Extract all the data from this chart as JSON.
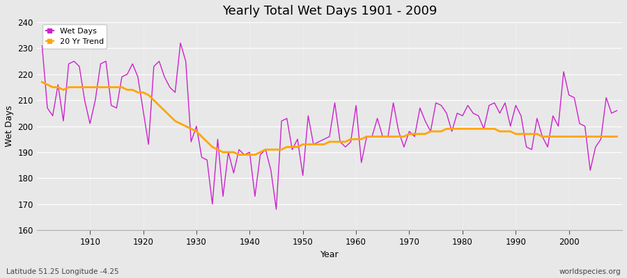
{
  "title": "Yearly Total Wet Days 1901 - 2009",
  "xlabel": "Year",
  "ylabel": "Wet Days",
  "lat_lon_label": "Latitude 51.25 Longitude -4.25",
  "watermark": "worldspecies.org",
  "wet_days_color": "#cc22cc",
  "trend_color": "#ffa500",
  "background_color": "#e8e8e8",
  "grid_color": "#ffffff",
  "ylim": [
    160,
    240
  ],
  "xlim": [
    1900,
    2010
  ],
  "yticks": [
    160,
    170,
    180,
    190,
    200,
    210,
    220,
    230,
    240
  ],
  "xticks": [
    1910,
    1920,
    1930,
    1940,
    1950,
    1960,
    1970,
    1980,
    1990,
    2000
  ],
  "years": [
    1901,
    1902,
    1903,
    1904,
    1905,
    1906,
    1907,
    1908,
    1909,
    1910,
    1911,
    1912,
    1913,
    1914,
    1915,
    1916,
    1917,
    1918,
    1919,
    1920,
    1921,
    1922,
    1923,
    1924,
    1925,
    1926,
    1927,
    1928,
    1929,
    1930,
    1931,
    1932,
    1933,
    1934,
    1935,
    1936,
    1937,
    1938,
    1939,
    1940,
    1941,
    1942,
    1943,
    1944,
    1945,
    1946,
    1947,
    1948,
    1949,
    1950,
    1951,
    1952,
    1953,
    1954,
    1955,
    1956,
    1957,
    1958,
    1959,
    1960,
    1961,
    1962,
    1963,
    1964,
    1965,
    1966,
    1967,
    1968,
    1969,
    1970,
    1971,
    1972,
    1973,
    1974,
    1975,
    1976,
    1977,
    1978,
    1979,
    1980,
    1981,
    1982,
    1983,
    1984,
    1985,
    1986,
    1987,
    1988,
    1989,
    1990,
    1991,
    1992,
    1993,
    1994,
    1995,
    1996,
    1997,
    1998,
    1999,
    2000,
    2001,
    2002,
    2003,
    2004,
    2005,
    2006,
    2007,
    2008,
    2009
  ],
  "wet_days": [
    231,
    207,
    204,
    216,
    202,
    224,
    225,
    223,
    210,
    201,
    210,
    224,
    225,
    208,
    207,
    219,
    220,
    224,
    219,
    206,
    193,
    223,
    225,
    219,
    215,
    213,
    232,
    225,
    194,
    200,
    188,
    187,
    170,
    195,
    173,
    190,
    182,
    191,
    189,
    190,
    173,
    189,
    191,
    183,
    168,
    202,
    203,
    191,
    195,
    181,
    204,
    193,
    194,
    195,
    196,
    209,
    194,
    192,
    194,
    208,
    186,
    196,
    196,
    203,
    196,
    196,
    209,
    198,
    192,
    198,
    196,
    207,
    202,
    198,
    209,
    208,
    205,
    198,
    205,
    204,
    208,
    205,
    204,
    199,
    208,
    209,
    205,
    209,
    200,
    208,
    204,
    192,
    191,
    203,
    196,
    192,
    204,
    200,
    221,
    212,
    211,
    201,
    200,
    183,
    192,
    195,
    211,
    205,
    206
  ],
  "trend": [
    217,
    216,
    215,
    215,
    214,
    215,
    215,
    215,
    215,
    215,
    215,
    215,
    215,
    215,
    215,
    215,
    214,
    214,
    213,
    213,
    212,
    210,
    208,
    206,
    204,
    202,
    201,
    200,
    199,
    198,
    196,
    194,
    192,
    191,
    190,
    190,
    190,
    189,
    189,
    189,
    189,
    190,
    191,
    191,
    191,
    191,
    192,
    192,
    192,
    193,
    193,
    193,
    193,
    193,
    194,
    194,
    194,
    194,
    195,
    195,
    195,
    196,
    196,
    196,
    196,
    196,
    196,
    196,
    196,
    197,
    197,
    197,
    197,
    198,
    198,
    198,
    199,
    199,
    199,
    199,
    199,
    199,
    199,
    199,
    199,
    199,
    198,
    198,
    198,
    197,
    197,
    197,
    197,
    197,
    196,
    196,
    196,
    196,
    196,
    196,
    196,
    196,
    196,
    196,
    196,
    196,
    196,
    196,
    196
  ]
}
